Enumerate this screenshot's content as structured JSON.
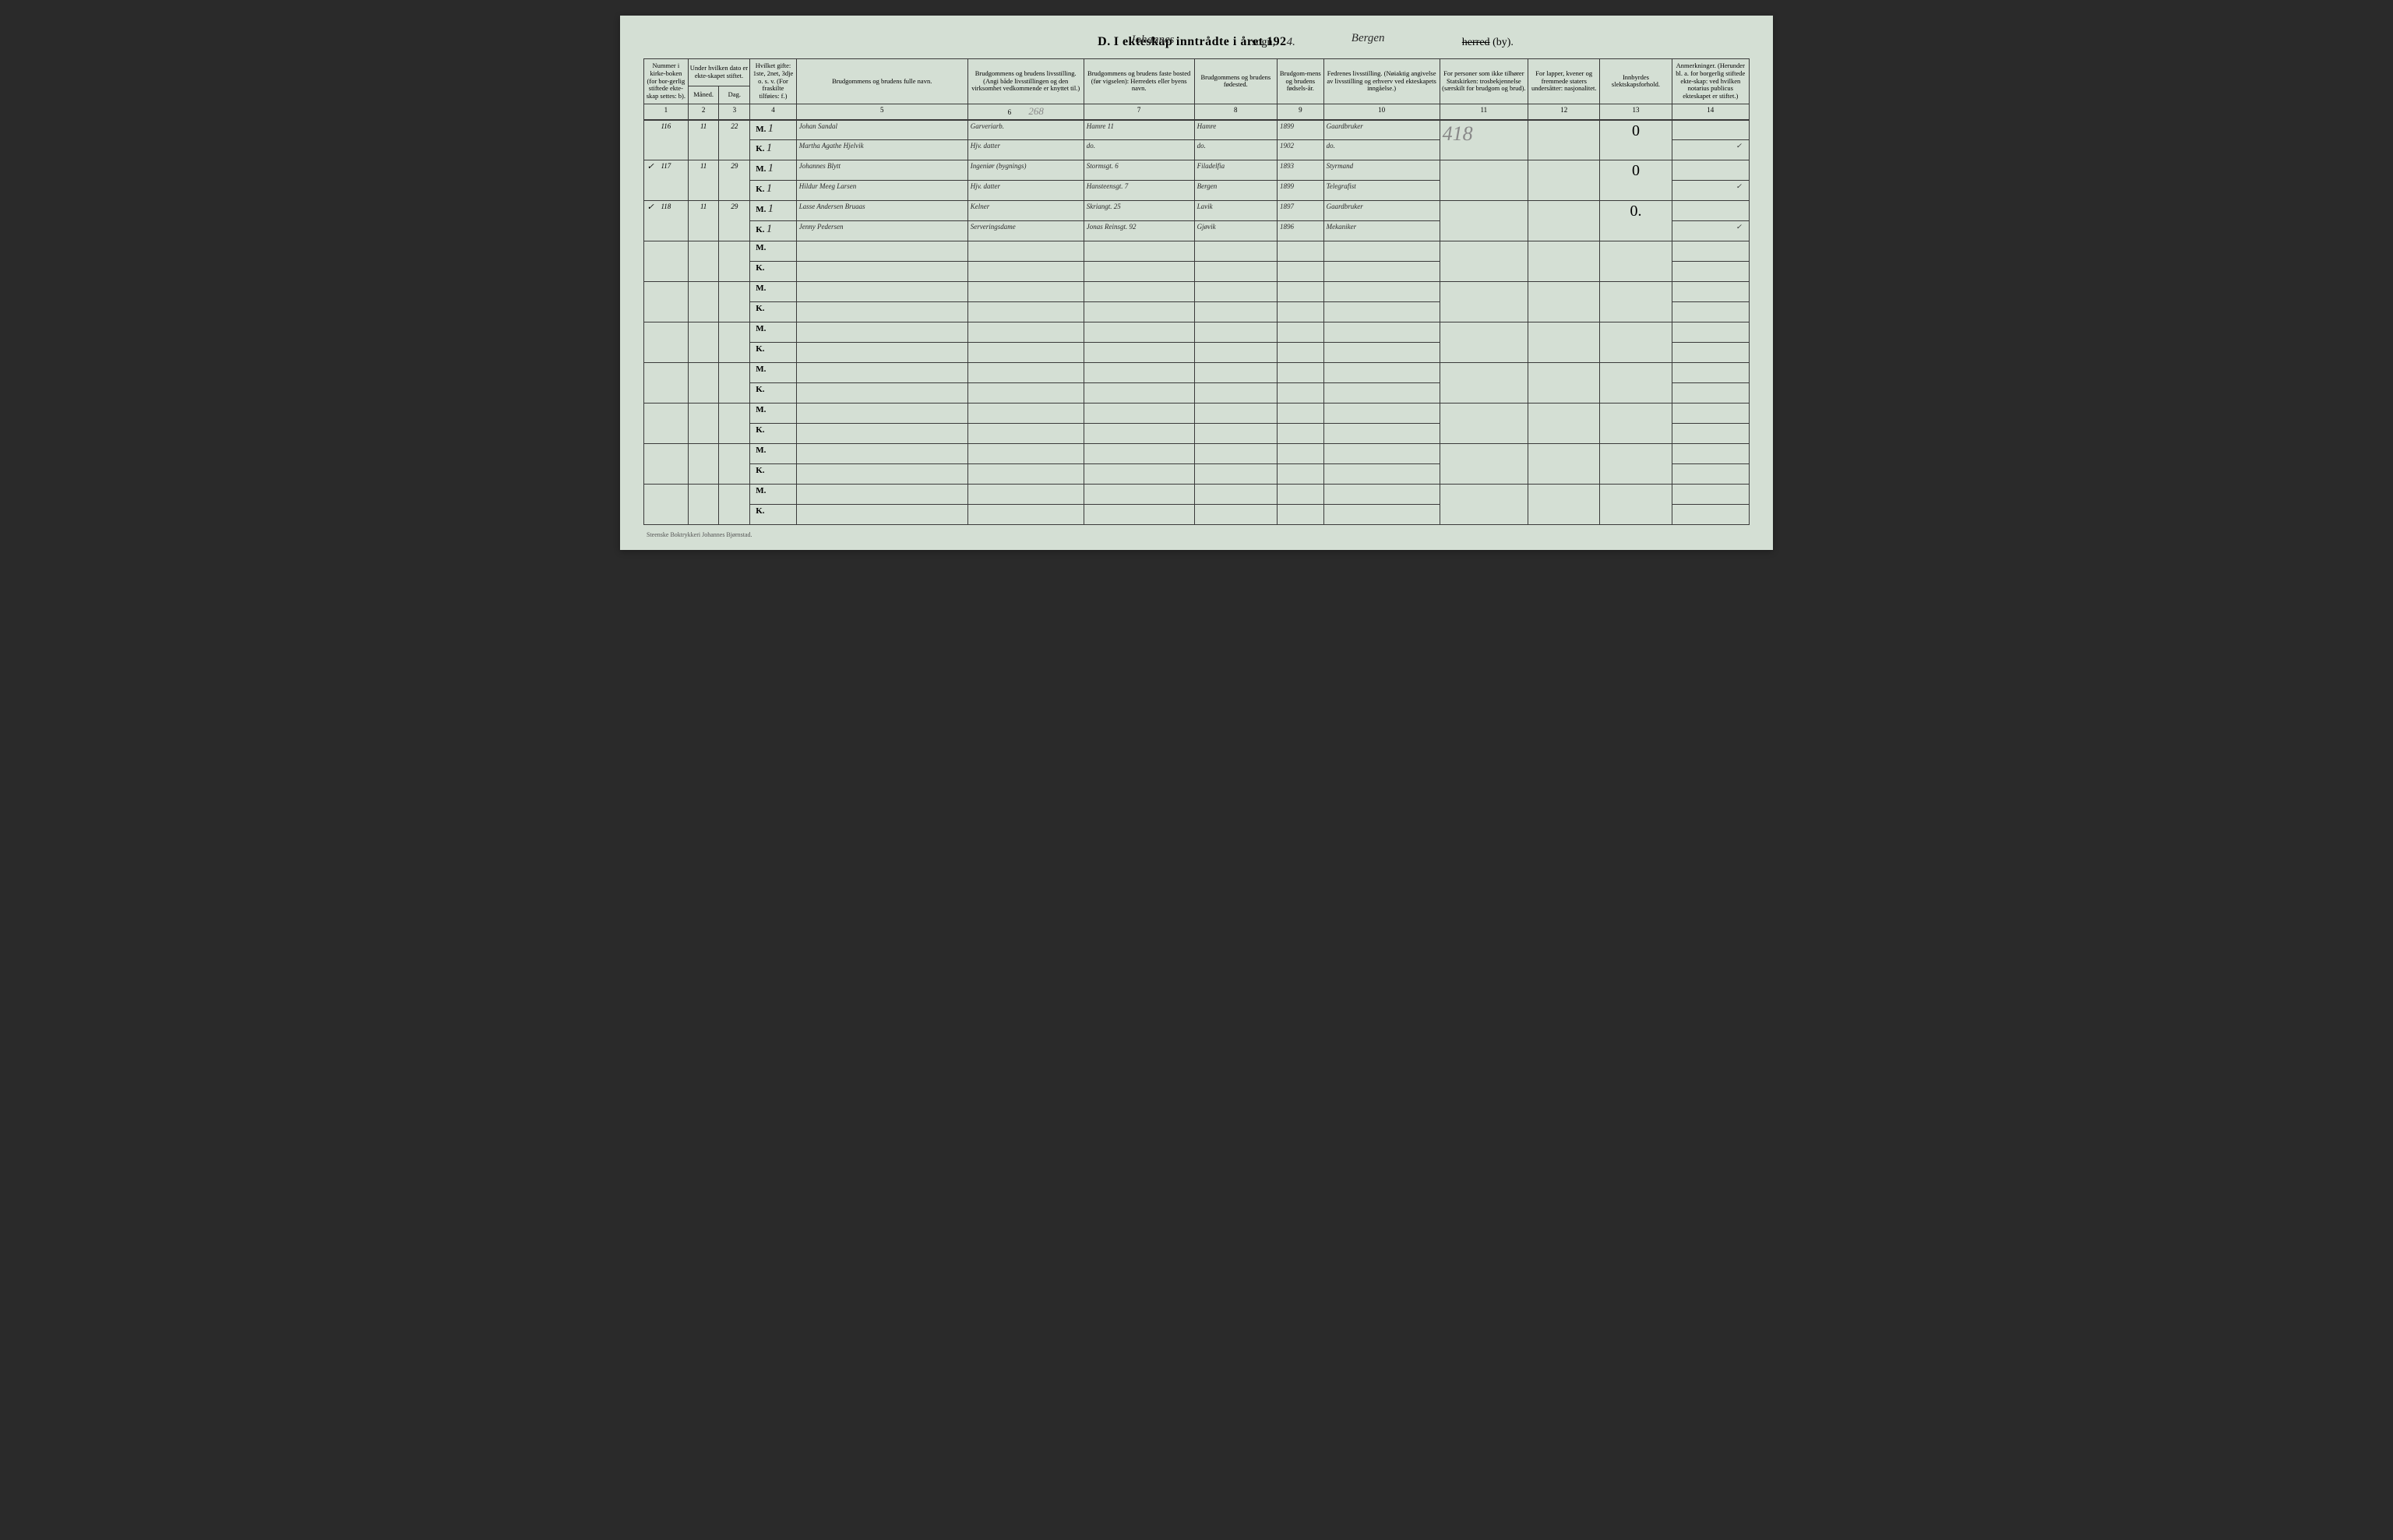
{
  "title": {
    "prefix": "D.",
    "main": "I ekteskap inntrådte i året 192",
    "year_digit": "4.",
    "sogn_hand": "Johannes",
    "sogn_label": "sogn,",
    "herred_hand": "Bergen",
    "herred_label_strike": "herred",
    "herred_label_by": "(by)."
  },
  "headers": {
    "c1": "Nummer i kirke-boken (for bor-gerlig stiftede ekte-skap settes: b).",
    "c2a": "Under hvilken dato er ekte-skapet stiftet.",
    "c2_m": "Måned.",
    "c2_d": "Dag.",
    "c4": "Hvilket gifte: 1ste, 2net, 3dje o. s. v. (For fraskilte tilføies: f.)",
    "c5": "Brudgommens og brudens fulle navn.",
    "c6": "Brudgommens og brudens livsstilling. (Angi både livsstillingen og den virksomhet vedkommende er knyttet til.)",
    "c7": "Brudgommens og brudens faste bosted (før vigselen): Herredets eller byens navn.",
    "c8": "Brudgommens og brudens fødested.",
    "c9": "Brudgom-mens og brudens fødsels-år.",
    "c10": "Fedrenes livsstilling. (Nøiaktig angivelse av livsstilling og erhverv ved ekteskapets inngåelse.)",
    "c11": "For personer som ikke tilhører Statskirken: trosbekjennelse (særskilt for brudgom og brud).",
    "c12": "For lapper, kvener og fremmede staters undersåtter: nasjonalitet.",
    "c13": "Innbyrdes slektskapsforhold.",
    "c14": "Anmerkninger. (Herunder bl. a. for borgerlig stiftede ekte-skap: ved hvilken notarius publicus ekteskapet er stiftet.)"
  },
  "colnums": [
    "1",
    "2",
    "3",
    "4",
    "5",
    "6",
    "7",
    "8",
    "9",
    "10",
    "11",
    "12",
    "13",
    "14"
  ],
  "col6_pencil": "268",
  "pencil_418": "418",
  "entries": [
    {
      "num": "116",
      "month": "11",
      "day": "22",
      "m": {
        "gifte": "1",
        "navn": "Johan Sandal",
        "stilling": "Garveriarb.",
        "bosted": "Hamre 11",
        "fodested": "Hamre",
        "aar": "1899",
        "far": "Gaardbruker"
      },
      "k": {
        "gifte": "1",
        "navn": "Martha Agathe Hjelvik",
        "stilling": "Hjv. datter",
        "bosted": "do.",
        "fodested": "do.",
        "aar": "1902",
        "far": "do."
      },
      "c13": "0",
      "c14": "✓"
    },
    {
      "num": "117",
      "month": "11",
      "day": "29",
      "tick": "✓",
      "m": {
        "gifte": "1",
        "navn": "Johannes Blytt",
        "stilling": "Ingeniør (bygnings)",
        "bosted": "Stormsgt. 6",
        "fodested": "Filadelfia",
        "aar": "1893",
        "far": "Styrmand"
      },
      "k": {
        "gifte": "1",
        "navn": "Hildur Meeg Larsen",
        "stilling": "Hjv. datter",
        "bosted": "Hansteensgt. 7",
        "fodested": "Bergen",
        "aar": "1899",
        "far": "Telegrafist"
      },
      "c13": "0",
      "c14": "✓"
    },
    {
      "num": "118",
      "month": "11",
      "day": "29",
      "tick": "✓",
      "m": {
        "gifte": "1",
        "navn": "Lasse Andersen Bruaas",
        "stilling": "Kelner",
        "bosted": "Skriangt. 25",
        "fodested": "Lavik",
        "aar": "1897",
        "far": "Gaardbruker"
      },
      "k": {
        "gifte": "1",
        "navn": "Jenny Pedersen",
        "stilling": "Serveringsdame",
        "bosted": "Jonas Reinsgt. 92",
        "fodested": "Gjøvik",
        "aar": "1896",
        "far": "Mekaniker"
      },
      "c13": "0.",
      "c14": "✓"
    }
  ],
  "footer": "Steenske Boktrykkeri Johannes Bjørnstad.",
  "colors": {
    "page_bg": "#d4dfd4",
    "border": "#3a3a3a",
    "ink": "#2a2a2a",
    "pencil": "#888888"
  },
  "colwidths_pct": [
    4.0,
    2.8,
    2.8,
    4.2,
    15.5,
    10.5,
    10.0,
    7.5,
    4.2,
    10.5,
    8.0,
    6.5,
    6.5,
    7.0
  ]
}
